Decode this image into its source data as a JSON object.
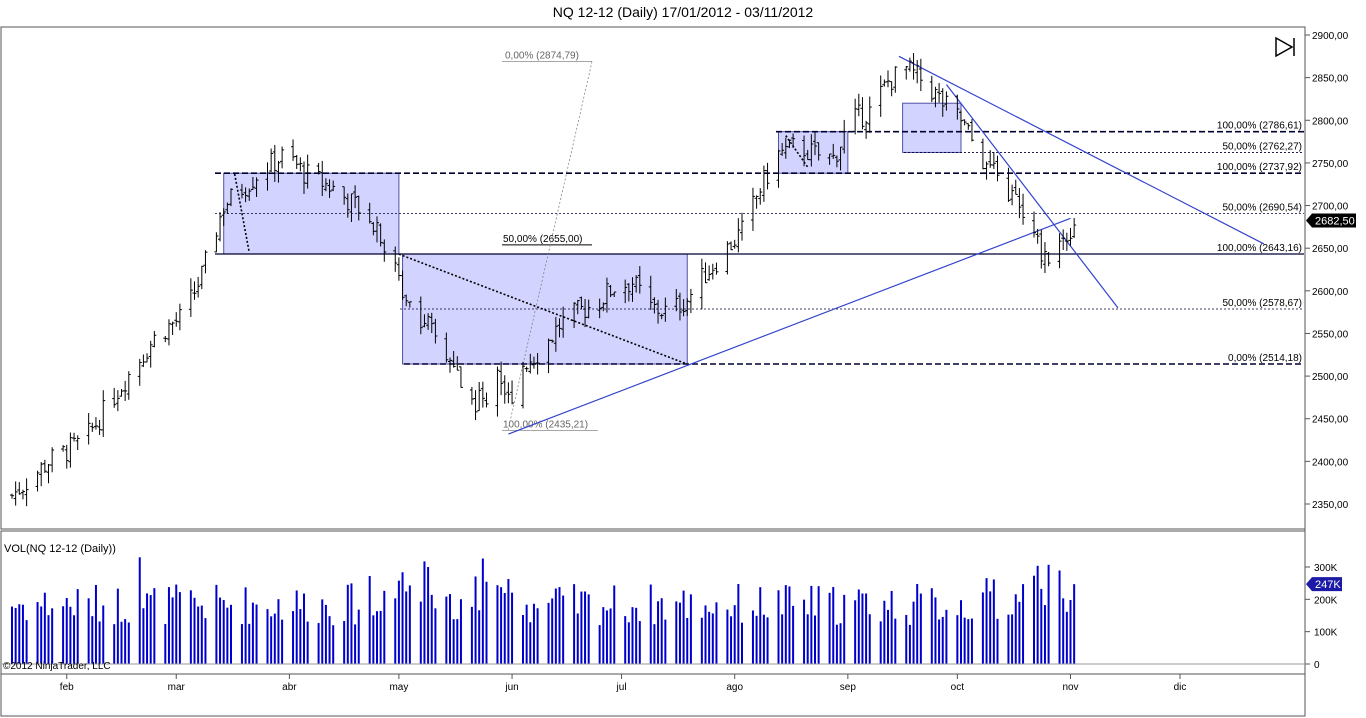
{
  "window": {
    "title": "NQ 12-12 (Daily)  17/01/2012 - 03/11/2012"
  },
  "copyright": "©2012 NinjaTrader, LLC",
  "volume_label": "VOL(NQ 12-12 (Daily))",
  "last_price_label": "2682,50",
  "last_volume_label": "247K",
  "colors": {
    "bar": "#000000",
    "volume": "#0000cc",
    "box_fill": "#ccccff",
    "box_stroke": "#333399",
    "line": "#3344cc",
    "marker": "#1a1aa6"
  },
  "chart_data": [
    {
      "type": "ohlc",
      "title": "NQ 12-12 (Daily)  17/01/2012 - 03/11/2012",
      "ylim": [
        2300,
        2900
      ],
      "y_ticks": [
        2350,
        2400,
        2450,
        2500,
        2550,
        2600,
        2650,
        2700,
        2750,
        2800,
        2850,
        2900
      ],
      "y_tick_labels": [
        "2350,00",
        "2400,00",
        "2450,00",
        "2500,00",
        "2550,00",
        "2600,00",
        "2650,00",
        "2700,00",
        "2750,00",
        "2800,00",
        "2850,00",
        "2900,00"
      ],
      "x_months": [
        "feb",
        "mar",
        "abr",
        "may",
        "jun",
        "jul",
        "ago",
        "sep",
        "oct",
        "nov",
        "dic"
      ],
      "x_month_days": [
        15,
        45,
        76,
        106,
        137,
        167,
        198,
        229,
        259,
        290,
        320
      ],
      "series": [
        {
          "values": [
            [
              0,
              2360
            ],
            [
              10,
              2400
            ],
            [
              20,
              2425
            ],
            [
              30,
              2490
            ],
            [
              40,
              2550
            ],
            [
              47,
              2570
            ],
            [
              52,
              2618
            ],
            [
              58,
              2700
            ],
            [
              68,
              2740
            ],
            [
              75,
              2760
            ],
            [
              80,
              2738
            ],
            [
              88,
              2720
            ],
            [
              94,
              2700
            ],
            [
              100,
              2680
            ],
            [
              106,
              2610
            ],
            [
              112,
              2570
            ],
            [
              116,
              2545
            ],
            [
              120,
              2515
            ],
            [
              126,
              2470
            ],
            [
              130,
              2475
            ],
            [
              133,
              2510
            ],
            [
              136,
              2470
            ],
            [
              140,
              2515
            ],
            [
              145,
              2530
            ],
            [
              150,
              2560
            ],
            [
              155,
              2575
            ],
            [
              160,
              2585
            ],
            [
              165,
              2605
            ],
            [
              170,
              2610
            ],
            [
              175,
              2580
            ],
            [
              180,
              2575
            ],
            [
              185,
              2590
            ],
            [
              190,
              2620
            ],
            [
              195,
              2645
            ],
            [
              200,
              2670
            ],
            [
              205,
              2720
            ],
            [
              210,
              2760
            ],
            [
              215,
              2770
            ],
            [
              220,
              2760
            ],
            [
              225,
              2755
            ],
            [
              230,
              2800
            ],
            [
              235,
              2810
            ],
            [
              240,
              2845
            ],
            [
              245,
              2860
            ],
            [
              250,
              2845
            ],
            [
              255,
              2820
            ],
            [
              260,
              2800
            ],
            [
              265,
              2760
            ],
            [
              270,
              2730
            ],
            [
              275,
              2705
            ],
            [
              280,
              2660
            ],
            [
              283,
              2640
            ],
            [
              286,
              2650
            ],
            [
              289,
              2665
            ],
            [
              291,
              2682.5
            ]
          ]
        }
      ],
      "fibonacci": [
        {
          "label": "100,00% (2786,61)",
          "value": 2786.61,
          "style": "dashed"
        },
        {
          "label": "50,00% (2762,27)",
          "value": 2762.27,
          "style": "dotted"
        },
        {
          "label": "100,00% (2737,92)",
          "value": 2737.92,
          "style": "dashed"
        },
        {
          "label": "50,00% (2690,54)",
          "value": 2690.54,
          "style": "dotted"
        },
        {
          "label": "100,00% (2643,16)",
          "value": 2643.16,
          "style": "solid"
        },
        {
          "label": "50,00% (2578,67)",
          "value": 2578.67,
          "style": "dotted"
        },
        {
          "label": "0,00% (2514,18)",
          "value": 2514.18,
          "style": "dashed"
        }
      ],
      "annotations": [
        {
          "label": "0,00% (2874,79)",
          "value": 2874.79
        },
        {
          "label": "50,00% (2655,00)",
          "value": 2655.0
        },
        {
          "label": "100,00% (2435,21)",
          "value": 2435.21
        }
      ],
      "last_value": 2682.5
    },
    {
      "type": "bar",
      "title": "VOL(NQ 12-12 (Daily))",
      "ylim": [
        0,
        300000
      ],
      "y_ticks": [
        0,
        100000,
        200000,
        300000
      ],
      "y_tick_labels": [
        "0",
        "100K",
        "200K",
        "300K"
      ],
      "last_value": 247000
    }
  ]
}
